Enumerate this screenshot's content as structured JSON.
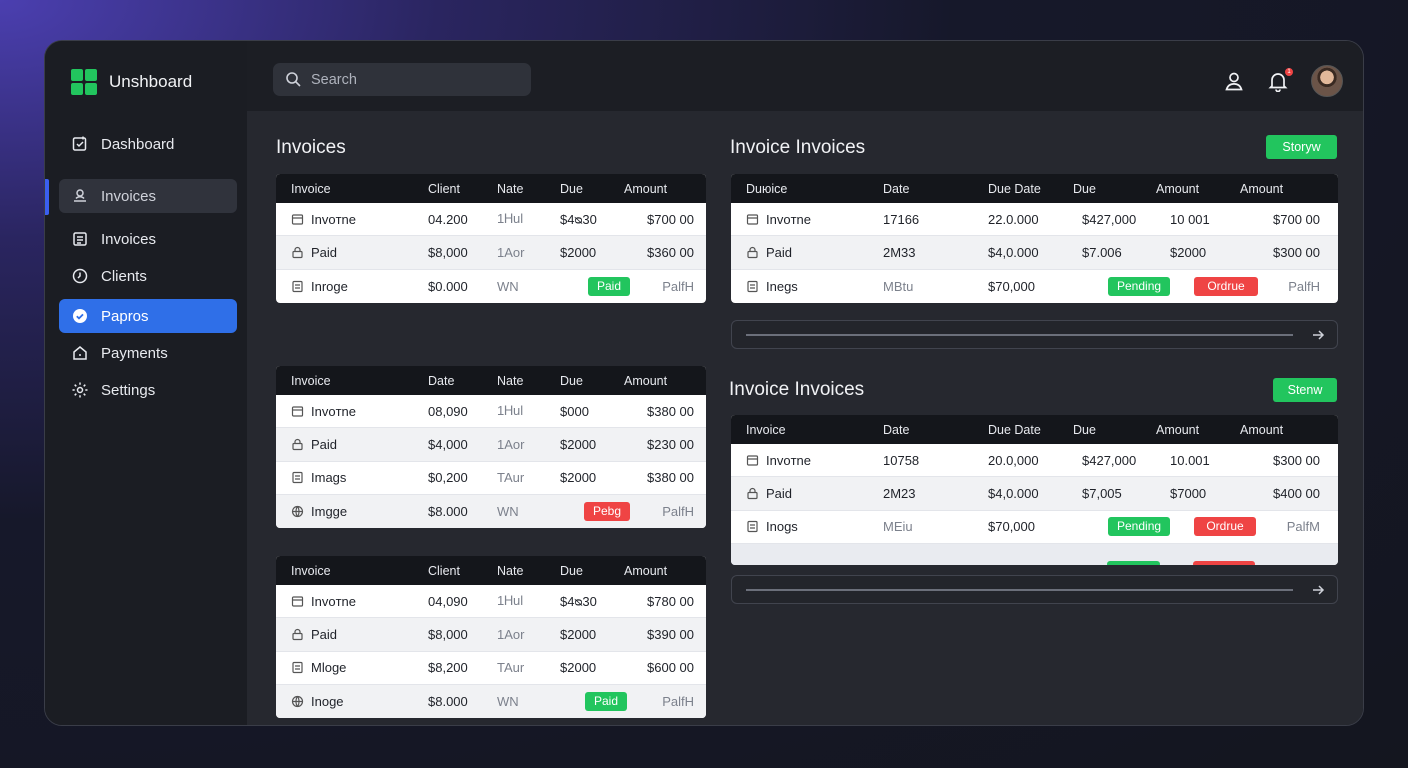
{
  "app": {
    "title": "Unshboard"
  },
  "sidebar": {
    "items": [
      {
        "label": "Dashboard",
        "icon": "dashboard-check-icon"
      },
      {
        "label": "Invoices",
        "icon": "user-upload-icon"
      },
      {
        "label": "Invoices",
        "icon": "document-icon"
      },
      {
        "label": "Clients",
        "icon": "clock-icon"
      },
      {
        "label": "Papros",
        "icon": "check-circle-icon"
      },
      {
        "label": "Payments",
        "icon": "home-icon"
      },
      {
        "label": "Settings",
        "icon": "gear-icon"
      }
    ]
  },
  "search": {
    "placeholder": "Search"
  },
  "header": {
    "notification_count": "1"
  },
  "left": {
    "title": "Invoices",
    "tables": [
      {
        "headers": [
          "Invoice",
          "Client",
          "Nate",
          "Due",
          "Amount"
        ],
        "rows": [
          {
            "name": "Invoтne",
            "c2": "04.200",
            "c3": "1Ꮋul",
            "c4": "$4ᴓ30",
            "c5": "$700 00"
          },
          {
            "name": "Paid",
            "c2": "$8,000",
            "c3": "1Aor",
            "c4": "$2000",
            "c5": "$360 00"
          },
          {
            "name": "Inrogе",
            "c2": "$0.000",
            "c3": "WN",
            "badge": {
              "text": "Paid",
              "color": "green"
            },
            "c5": "PalfH"
          }
        ]
      },
      {
        "headers": [
          "Invoice",
          "Date",
          "Nate",
          "Due",
          "Amount"
        ],
        "rows": [
          {
            "name": "Invoтne",
            "c2": "08,090",
            "c3": "1Ꮋul",
            "c4": "$000",
            "c5": "$380 00"
          },
          {
            "name": "Paid",
            "c2": "$4,000",
            "c3": "1Aor",
            "c4": "$2000",
            "c5": "$230 00"
          },
          {
            "name": "Imags",
            "c2": "$0,200",
            "c3": "TAur",
            "c4": "$2000",
            "c5": "$380 00"
          },
          {
            "name": "Imgge",
            "c2": "$8.000",
            "c3": "WN",
            "badge": {
              "text": "Pebg",
              "color": "red"
            },
            "c5": "PalfH"
          }
        ]
      },
      {
        "headers": [
          "Invoice",
          "Client",
          "Nate",
          "Due",
          "Amount"
        ],
        "rows": [
          {
            "name": "Invoтne",
            "c2": "04,090",
            "c3": "1Ꮋul",
            "c4": "$4ᴓ30",
            "c5": "$780 00"
          },
          {
            "name": "Paid",
            "c2": "$8,000",
            "c3": "1Aor",
            "c4": "$2000",
            "c5": "$390 00"
          },
          {
            "name": "Mloge",
            "c2": "$8,200",
            "c3": "TAur",
            "c4": "$2000",
            "c5": "$600 00"
          },
          {
            "name": "Inoge",
            "c2": "$8.000",
            "c3": "WN",
            "badge": {
              "text": "Paid",
              "color": "green"
            },
            "c5": "PalfH"
          }
        ]
      }
    ]
  },
  "right": {
    "sections": [
      {
        "title": "Invoice Invoices",
        "button": "Storуw",
        "headers": [
          "Duюice",
          "Date",
          "Due Date",
          "Due",
          "Amount",
          "Amount"
        ],
        "rows": [
          {
            "name": "Invoтne",
            "c2": "17166",
            "c3": "22.0.000",
            "c4": "$427,000",
            "c5": "10 001",
            "c6": "$700 00"
          },
          {
            "name": "Paid",
            "c2": "2M33",
            "c3": "$4,0.000",
            "c4": "$7.006",
            "c5": "$2000",
            "c6": "$300 00"
          },
          {
            "name": "Inegs",
            "c2": "MBtu",
            "c3": "$70,000",
            "b1": "Pending",
            "b2": "Ordrue",
            "c6": "PalfH"
          }
        ]
      },
      {
        "title": "Invoice Invoices",
        "button": "Stenw",
        "headers": [
          "Invoice",
          "Date",
          "Due Date",
          "Due",
          "Amount",
          "Amount"
        ],
        "rows": [
          {
            "name": "Invoтne",
            "c2": "10758",
            "c3": "20.0,000",
            "c4": "$427,000",
            "c5": "10.001",
            "c6": "$300 00"
          },
          {
            "name": "Paid",
            "c2": "2M23",
            "c3": "$4,0.000",
            "c4": "$7,005",
            "c5": "$7000",
            "c6": "$400 00"
          },
          {
            "name": "Inogs",
            "c2": "MEiu",
            "c3": "$70,000",
            "b1": "Pending",
            "b2": "Ordrue",
            "c6": "PalfM"
          }
        ]
      }
    ]
  },
  "colors": {
    "accent": "#2f6fe8",
    "success": "#22c55e",
    "danger": "#ef4444",
    "brand": "#22c55e"
  }
}
